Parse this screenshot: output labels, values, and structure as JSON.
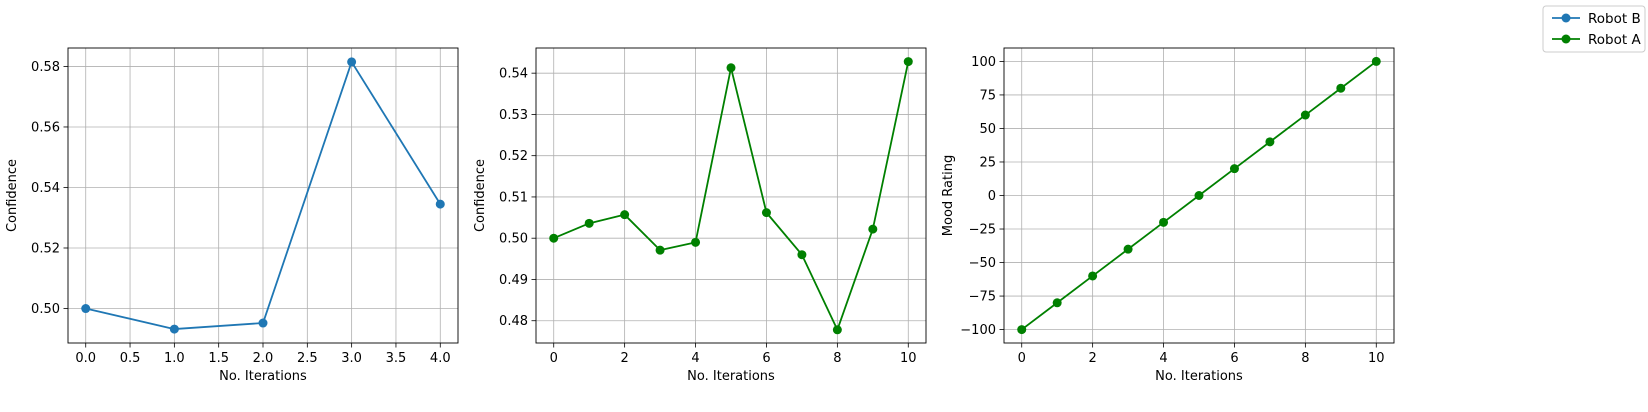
{
  "legend": [
    {
      "label": "Robot B",
      "color": "#1f77b4"
    },
    {
      "label": "Robot A",
      "color": "#008000"
    }
  ],
  "chart_data": [
    {
      "type": "line",
      "series": [
        {
          "name": "Robot B",
          "color": "#1f77b4",
          "x": [
            0,
            1,
            2,
            3,
            4
          ],
          "values": [
            0.5,
            0.4932,
            0.4952,
            0.5815,
            0.5345
          ]
        }
      ],
      "xlabel": "No. Iterations",
      "ylabel": "Confidence",
      "xlim": [
        -0.2,
        4.2
      ],
      "ylim": [
        0.4886,
        0.5861
      ],
      "xticks": [
        0.0,
        0.5,
        1.0,
        1.5,
        2.0,
        2.5,
        3.0,
        3.5,
        4.0
      ],
      "xtick_labels": [
        "0.0",
        "0.5",
        "1.0",
        "1.5",
        "2.0",
        "2.5",
        "3.0",
        "3.5",
        "4.0"
      ],
      "yticks": [
        0.5,
        0.52,
        0.54,
        0.56,
        0.58
      ],
      "ytick_labels": [
        "0.50",
        "0.52",
        "0.54",
        "0.56",
        "0.58"
      ],
      "grid": true
    },
    {
      "type": "line",
      "series": [
        {
          "name": "Robot A",
          "color": "#008000",
          "x": [
            0,
            1,
            2,
            3,
            4,
            5,
            6,
            7,
            8,
            9,
            10
          ],
          "values": [
            0.5,
            0.5036,
            0.5057,
            0.4971,
            0.499,
            0.5413,
            0.5062,
            0.496,
            0.4778,
            0.5022,
            0.5428
          ]
        }
      ],
      "xlabel": "No. Iterations",
      "ylabel": "Confidence",
      "xlim": [
        -0.5,
        10.5
      ],
      "ylim": [
        0.4746,
        0.5461
      ],
      "xticks": [
        0,
        2,
        4,
        6,
        8,
        10
      ],
      "xtick_labels": [
        "0",
        "2",
        "4",
        "6",
        "8",
        "10"
      ],
      "yticks": [
        0.48,
        0.49,
        0.5,
        0.51,
        0.52,
        0.53,
        0.54
      ],
      "ytick_labels": [
        "0.48",
        "0.49",
        "0.50",
        "0.51",
        "0.52",
        "0.53",
        "0.54"
      ],
      "grid": true
    },
    {
      "type": "line",
      "series": [
        {
          "name": "Robot A",
          "color": "#008000",
          "x": [
            0,
            1,
            2,
            3,
            4,
            5,
            6,
            7,
            8,
            9,
            10
          ],
          "values": [
            -100,
            -80,
            -60,
            -40,
            -20,
            0,
            20,
            40,
            60,
            80,
            100
          ]
        }
      ],
      "xlabel": "No. Iterations",
      "ylabel": "Mood Rating",
      "xlim": [
        -0.5,
        10.5
      ],
      "ylim": [
        -110,
        110
      ],
      "xticks": [
        0,
        2,
        4,
        6,
        8,
        10
      ],
      "xtick_labels": [
        "0",
        "2",
        "4",
        "6",
        "8",
        "10"
      ],
      "yticks": [
        -100,
        -75,
        -50,
        -25,
        0,
        25,
        50,
        75,
        100
      ],
      "ytick_labels": [
        "−100",
        "−75",
        "−50",
        "−25",
        "0",
        "25",
        "50",
        "75",
        "100"
      ],
      "grid": true
    }
  ]
}
